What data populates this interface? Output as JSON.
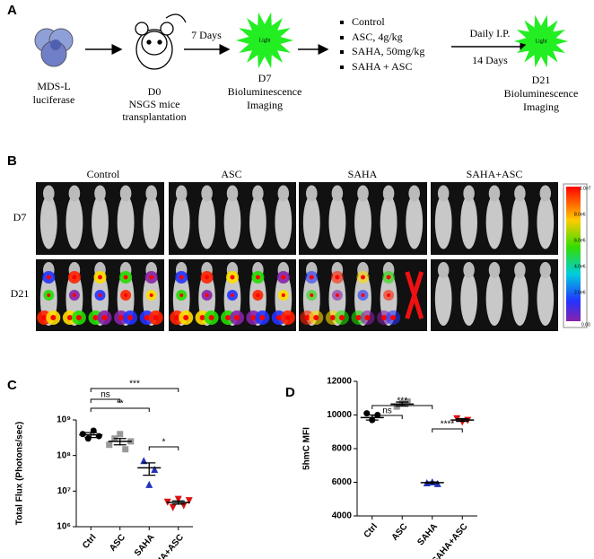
{
  "figure_a": {
    "label": "A",
    "cells": [
      "MDS-L",
      "luciferase"
    ],
    "d0": [
      "D0",
      "NSGS mice",
      "transplantation"
    ],
    "arrow1": "7 Days",
    "light1": "Light",
    "d7": [
      "D7",
      "Bioluminescence",
      "Imaging"
    ],
    "treatments": [
      "Control",
      "ASC, 4g/kg",
      "SAHA, 50mg/kg",
      "SAHA + ASC"
    ],
    "arrow2": [
      "Daily I.P.",
      "14 Days"
    ],
    "light2": "Light",
    "d21": [
      "D21",
      "Bioluminescence",
      "Imaging"
    ]
  },
  "figure_b": {
    "label": "B",
    "columns": [
      "Control",
      "ASC",
      "SAHA",
      "SAHA+ASC"
    ],
    "rows": [
      "D7",
      "D21"
    ],
    "colorbar": [
      "1.0e7",
      "8.0e6",
      "6.0e6",
      "4.0e6",
      "2.0e6",
      "0.00"
    ]
  },
  "chart_data": [
    {
      "type": "dotplot",
      "panel": "C",
      "ylabel": "Total Flux (Photons/sec)",
      "categories": [
        "Ctrl",
        "ASC",
        "SAHA",
        "SAHA+ASC"
      ],
      "colors": [
        "#000000",
        "#999999",
        "#2233bb",
        "#dd1111"
      ],
      "markers": [
        "circle",
        "square",
        "triangle",
        "triangle-down"
      ],
      "points": [
        [
          400000000,
          300000000,
          500000000,
          350000000
        ],
        [
          200000000,
          300000000,
          400000000,
          150000000,
          250000000
        ],
        [
          70000000,
          15000000,
          40000000
        ],
        [
          5000000,
          3500000,
          6000000,
          4000000,
          5500000
        ]
      ],
      "means": [
        380000000,
        250000000,
        45000000,
        4800000
      ],
      "errors": [
        60000000,
        50000000,
        17000000,
        500000
      ],
      "log": true,
      "ylim": [
        1000000,
        1000000000
      ],
      "yticks": [
        {
          "value": 1000000,
          "label": "10⁶"
        },
        {
          "value": 10000000,
          "label": "10⁷"
        },
        {
          "value": 100000000,
          "label": "10⁸"
        },
        {
          "value": 1000000000,
          "label": "10⁹"
        }
      ],
      "annotations": [
        {
          "from": 0,
          "to": 1,
          "label": "ns"
        },
        {
          "from": 0,
          "to": 2,
          "label": "**"
        },
        {
          "from": 0,
          "to": 3,
          "label": "***"
        },
        {
          "from": 2,
          "to": 3,
          "label": "*"
        }
      ]
    },
    {
      "type": "dotplot",
      "panel": "D",
      "ylabel": "5hmC MFI",
      "categories": [
        "Ctrl",
        "ASC",
        "SAHA",
        "SAHA+ASC"
      ],
      "colors": [
        "#000000",
        "#999999",
        "#2233bb",
        "#dd1111"
      ],
      "markers": [
        "circle",
        "square",
        "triangle",
        "triangle-down"
      ],
      "points": [
        [
          10100,
          9700,
          10000
        ],
        [
          10500,
          10700,
          10800
        ],
        [
          5950,
          6000,
          5900
        ],
        [
          9800,
          9600,
          9700
        ]
      ],
      "means": [
        9850,
        10650,
        5980,
        9700
      ],
      "errors": [
        150,
        120,
        40,
        80
      ],
      "log": false,
      "ylim": [
        4000,
        12000
      ],
      "yticks": [
        4000,
        6000,
        8000,
        10000,
        12000
      ],
      "annotations": [
        {
          "from": 0,
          "to": 1,
          "label": "ns"
        },
        {
          "from": 0,
          "to": 2,
          "label": "***"
        },
        {
          "from": 2,
          "to": 3,
          "label": "****"
        }
      ]
    }
  ]
}
